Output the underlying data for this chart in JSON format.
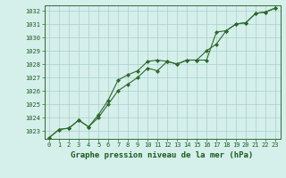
{
  "title": "Graphe pression niveau de la mer (hPa)",
  "x": [
    0,
    1,
    2,
    3,
    4,
    5,
    6,
    7,
    8,
    9,
    10,
    11,
    12,
    13,
    14,
    15,
    16,
    17,
    18,
    19,
    20,
    21,
    22,
    23
  ],
  "series1": [
    1022.5,
    1023.1,
    1023.2,
    1023.8,
    1023.3,
    1024.0,
    1025.0,
    1026.0,
    1026.5,
    1027.0,
    1027.7,
    1027.5,
    1028.2,
    1028.0,
    1028.3,
    1028.3,
    1029.0,
    1029.5,
    1030.5,
    1031.0,
    1031.1,
    1031.8,
    1031.9,
    1032.2
  ],
  "series2": [
    1022.5,
    1023.1,
    1023.2,
    1023.8,
    1023.3,
    1024.2,
    1025.3,
    1026.8,
    1027.2,
    1027.5,
    1028.2,
    1028.3,
    1028.2,
    1028.0,
    1028.3,
    1028.3,
    1028.3,
    1030.4,
    1030.5,
    1031.0,
    1031.1,
    1031.8,
    1031.9,
    1032.2
  ],
  "line_color": "#2d6a2d",
  "bg_color": "#d5efeb",
  "grid_color": "#aacfca",
  "text_color": "#1a5c1a",
  "ylim": [
    1022.4,
    1032.4
  ],
  "yticks": [
    1023,
    1024,
    1025,
    1026,
    1027,
    1028,
    1029,
    1030,
    1031,
    1032
  ],
  "xticks": [
    0,
    1,
    2,
    3,
    4,
    5,
    6,
    7,
    8,
    9,
    10,
    11,
    12,
    13,
    14,
    15,
    16,
    17,
    18,
    19,
    20,
    21,
    22,
    23
  ],
  "marker": "D",
  "markersize": 2,
  "linewidth": 0.8,
  "title_fontsize": 6.5,
  "tick_fontsize": 5.0
}
